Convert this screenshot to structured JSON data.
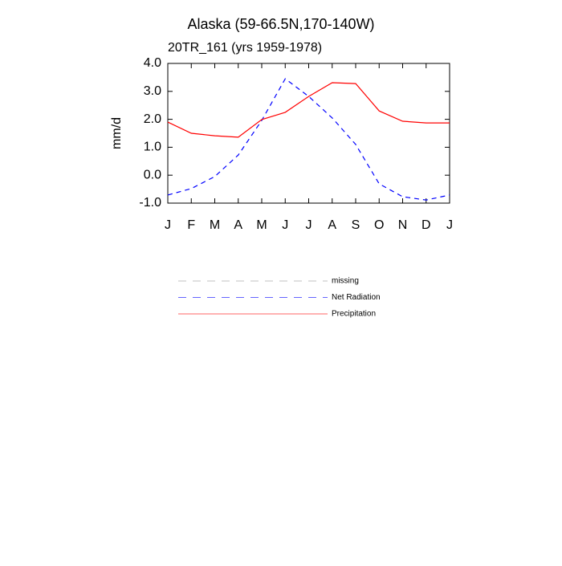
{
  "chart_data": {
    "type": "line",
    "title": "Alaska (59-66.5N,170-140W)",
    "subtitle": "20TR_161 (yrs 1959-1978)",
    "y_label": "mm/d",
    "categories": [
      "J",
      "F",
      "M",
      "A",
      "M",
      "J",
      "J",
      "A",
      "S",
      "O",
      "N",
      "D",
      "J"
    ],
    "series": [
      {
        "name": "missing",
        "color": "#999999",
        "dash": true,
        "values": [
          null,
          null,
          null,
          null,
          null,
          null,
          null,
          null,
          null,
          null,
          null,
          null,
          null
        ]
      },
      {
        "name": "Net Radiation",
        "color": "#0000ff",
        "dash": true,
        "values": [
          -0.71,
          -0.48,
          -0.05,
          0.72,
          1.96,
          3.45,
          2.82,
          2.05,
          1.1,
          -0.31,
          -0.77,
          -0.89,
          -0.71
        ]
      },
      {
        "name": "Precipitation",
        "color": "#ff0000",
        "dash": false,
        "values": [
          1.9,
          1.5,
          1.41,
          1.36,
          1.99,
          2.25,
          2.82,
          3.31,
          3.28,
          2.3,
          1.93,
          1.87,
          1.87
        ]
      }
    ],
    "ylim": [
      -1,
      4
    ],
    "yticks": [
      {
        "value": -1,
        "label": "-1.0"
      },
      {
        "value": 0,
        "label": "0.0"
      },
      {
        "value": 1,
        "label": "1.0"
      },
      {
        "value": 2,
        "label": "2.0"
      },
      {
        "value": 3,
        "label": "3.0"
      },
      {
        "value": 4,
        "label": "4.0"
      }
    ],
    "grid": false
  }
}
